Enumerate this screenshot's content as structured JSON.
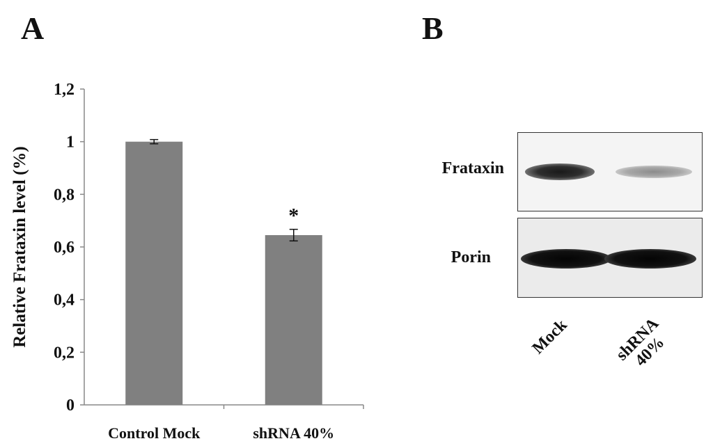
{
  "panels": {
    "a_letter": "A",
    "b_letter": "B"
  },
  "chart_data": {
    "type": "bar",
    "title": "",
    "xlabel": "",
    "ylabel": "Relative Frataxin level (%)",
    "categories": [
      "Control Mock",
      "shRNA 40%"
    ],
    "values": [
      1.0,
      0.645
    ],
    "errors": [
      0.008,
      0.022
    ],
    "significance": [
      "",
      "*"
    ],
    "ylim": [
      0,
      1.2
    ],
    "yticks": [
      0,
      0.2,
      0.4,
      0.6,
      0.8,
      1.0,
      1.2
    ],
    "ytick_labels": [
      "0",
      "0,2",
      "0,4",
      "0,6",
      "0,8",
      "1",
      "1,2"
    ],
    "bar_color": "#808080",
    "grid": false,
    "legend": "none"
  },
  "western_blot": {
    "rows": [
      {
        "label": "Frataxin",
        "bands": [
          {
            "lane": "Mock",
            "intensity": "strong"
          },
          {
            "lane": "shRNA 40%",
            "intensity": "weak"
          }
        ]
      },
      {
        "label": "Porin",
        "bands": [
          {
            "lane": "Mock",
            "intensity": "strong"
          },
          {
            "lane": "shRNA 40%",
            "intensity": "strong"
          }
        ]
      }
    ],
    "lanes": {
      "mock": "Mock",
      "shrna_line1": "shRNA",
      "shrna_line2": "40%"
    }
  }
}
